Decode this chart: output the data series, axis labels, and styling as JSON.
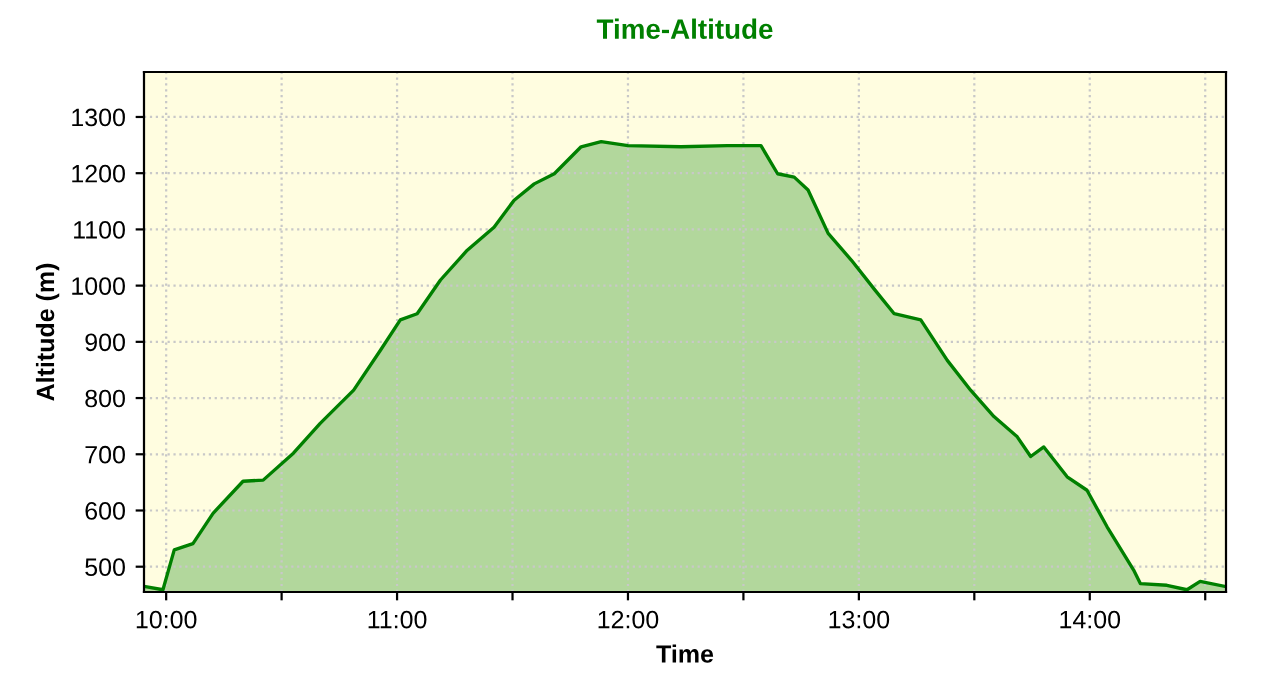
{
  "chart_data": {
    "type": "area",
    "title": "Time-Altitude",
    "xlabel": "Time",
    "ylabel": "Altitude (m)",
    "x": [
      9.904,
      9.986,
      10.035,
      10.116,
      10.203,
      10.333,
      10.42,
      10.551,
      10.667,
      10.812,
      10.928,
      11.014,
      11.087,
      11.188,
      11.304,
      11.42,
      11.507,
      11.594,
      11.681,
      11.797,
      11.884,
      12.0,
      12.23,
      12.43,
      12.576,
      12.648,
      12.72,
      12.78,
      12.867,
      12.968,
      13.07,
      13.153,
      13.268,
      13.383,
      13.484,
      13.585,
      13.686,
      13.744,
      13.801,
      13.902,
      13.988,
      14.075,
      14.19,
      14.219,
      14.334,
      14.421,
      14.478,
      14.585
    ],
    "series": [
      {
        "color": "#008000",
        "values": [
          465,
          459,
          530,
          541,
          595,
          652,
          654,
          702,
          755,
          814,
          885,
          939,
          950,
          1010,
          1063,
          1104,
          1152,
          1181,
          1199,
          1247,
          1256,
          1249,
          1247,
          1249,
          1249,
          1199,
          1193,
          1170,
          1093,
          1045,
          992,
          950,
          939,
          867,
          814,
          767,
          731,
          696,
          713,
          660,
          636,
          571,
          494,
          470,
          467,
          459,
          474,
          465
        ]
      }
    ],
    "xlim": [
      9.904,
      14.59
    ],
    "ylim": [
      455,
      1380
    ],
    "xticks": [
      {
        "value": 10,
        "label": "10:00"
      },
      {
        "value": 10.5,
        "label": null
      },
      {
        "value": 11,
        "label": "11:00"
      },
      {
        "value": 11.5,
        "label": null
      },
      {
        "value": 12,
        "label": "12:00"
      },
      {
        "value": 12.5,
        "label": null
      },
      {
        "value": 13,
        "label": "13:00"
      },
      {
        "value": 13.5,
        "label": null
      },
      {
        "value": 14,
        "label": "14:00"
      },
      {
        "value": 14.5,
        "label": null
      }
    ],
    "yticks": [
      500,
      600,
      700,
      800,
      900,
      1000,
      1100,
      1200,
      1300
    ],
    "grid": true,
    "line_style": "solid",
    "marker": "none"
  }
}
